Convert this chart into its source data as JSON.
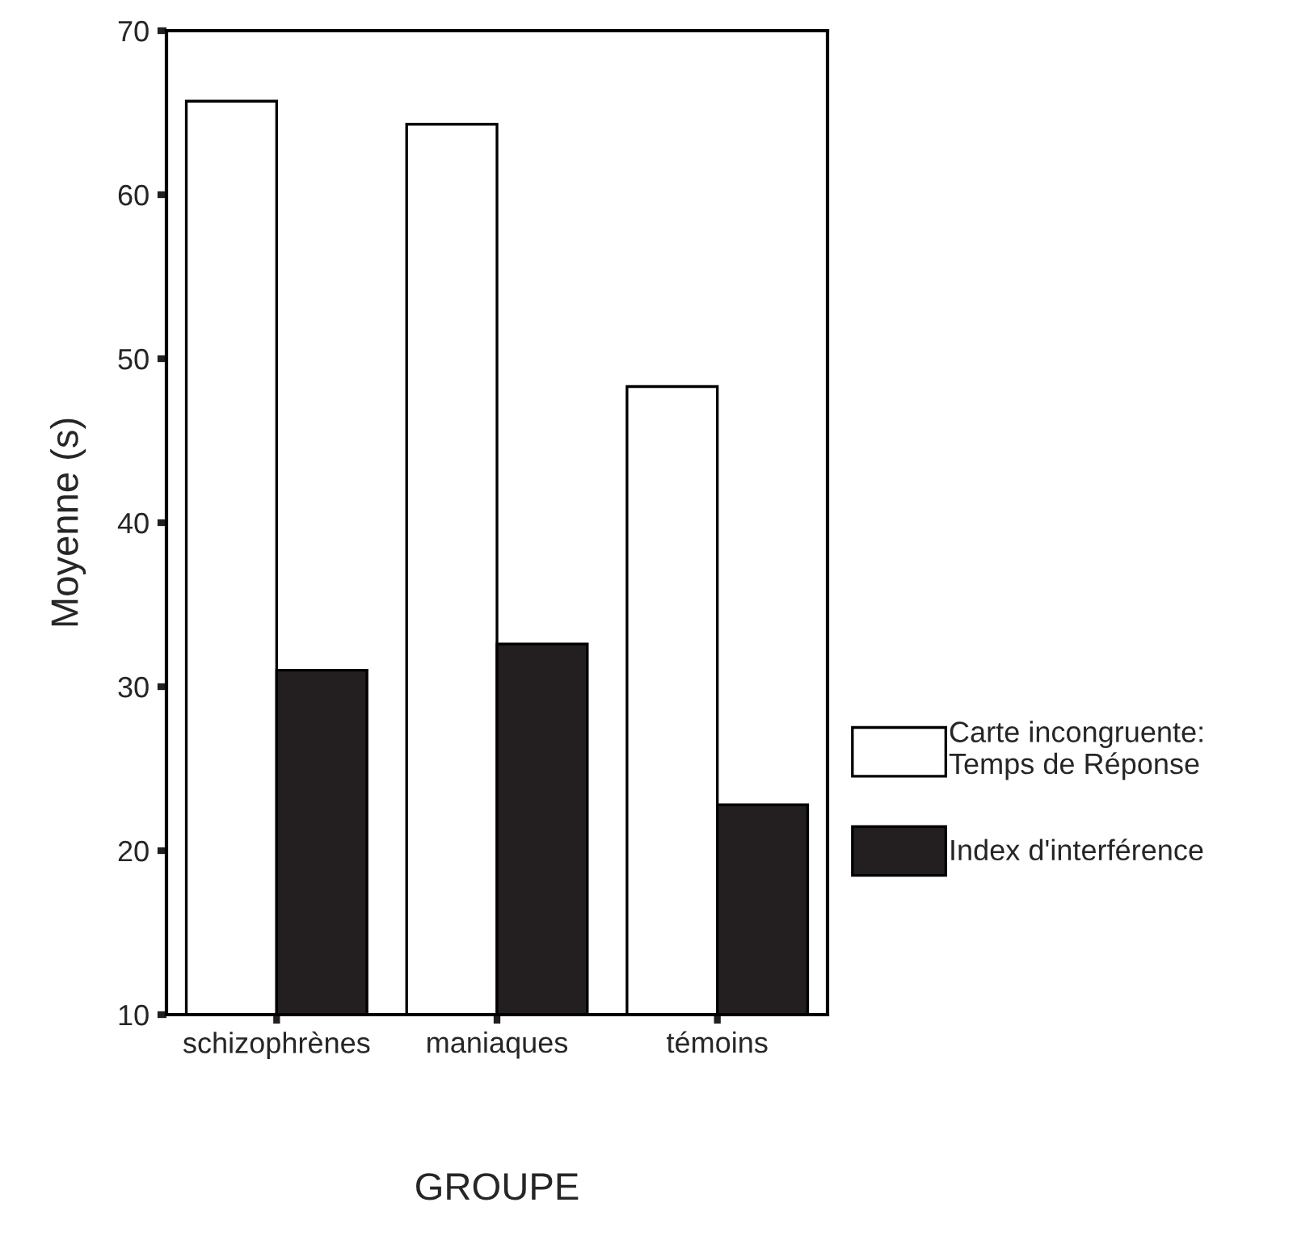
{
  "chart_data": {
    "type": "bar",
    "xlabel": "GROUPE",
    "ylabel": "Moyenne (s)",
    "categories": [
      "schizophrènes",
      "maniaques",
      "témoins"
    ],
    "series": [
      {
        "name": "Carte incongruente:\nTemps de Réponse",
        "color": "#ffffff",
        "values": [
          65.7,
          64.3,
          48.3
        ]
      },
      {
        "name": "Index d'interférence",
        "color": "#231f20",
        "values": [
          31.0,
          32.6,
          22.8
        ]
      }
    ],
    "ylim": [
      10,
      70
    ],
    "yticks": [
      10,
      20,
      30,
      40,
      50,
      60,
      70
    ],
    "grid": false,
    "legend": "right"
  }
}
